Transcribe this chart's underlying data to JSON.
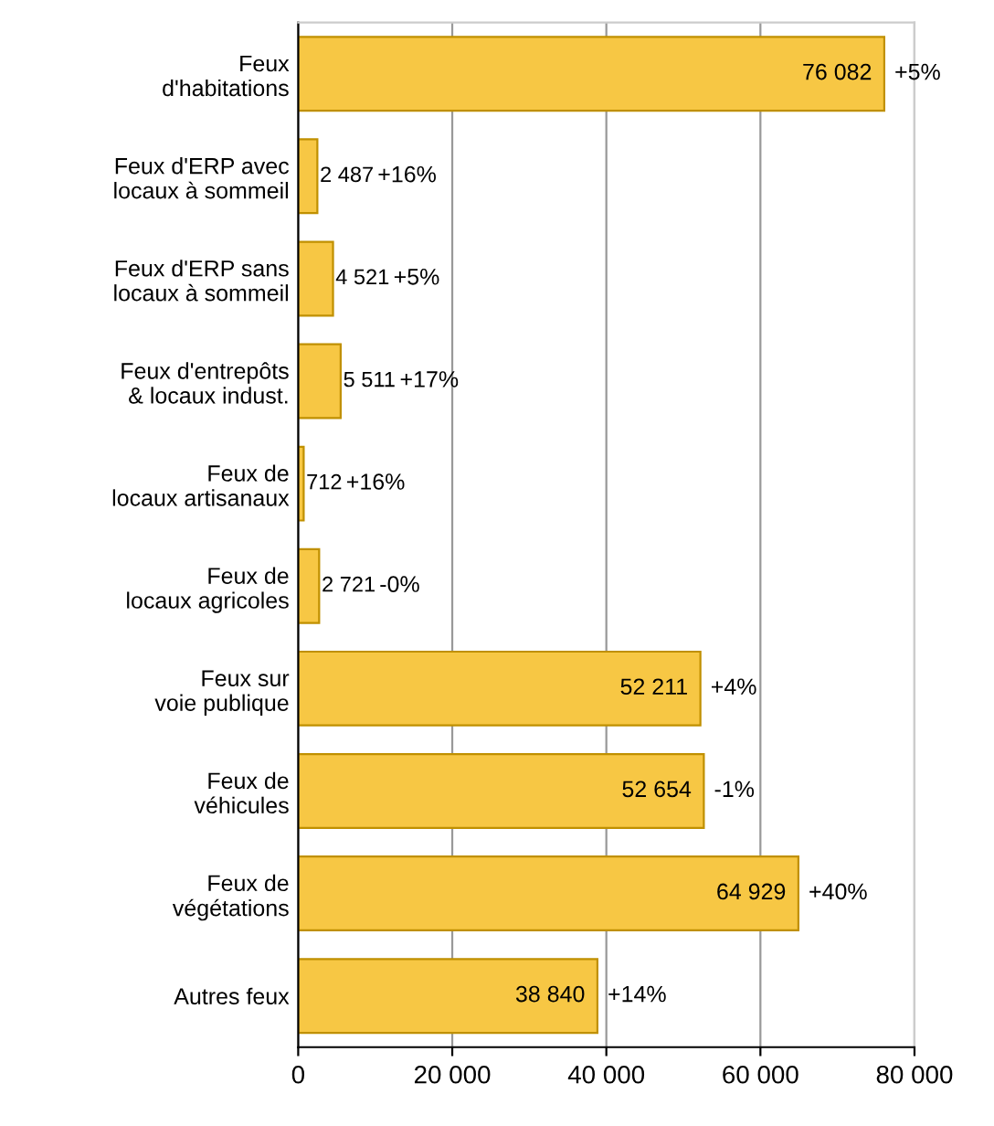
{
  "chart_data": {
    "type": "bar",
    "orientation": "horizontal",
    "categories": [
      "Feux\nd'habitations",
      "Feux d'ERP avec\nlocaux à sommeil",
      "Feux d'ERP sans\nlocaux à sommeil",
      "Feux d'entrepôts\n& locaux indust.",
      "Feux de\nlocaux artisanaux",
      "Feux de\nlocaux agricoles",
      "Feux sur\nvoie publique",
      "Feux de\nvéhicules",
      "Feux de\nvégétations",
      "Autres feux"
    ],
    "values": [
      76082,
      2487,
      4521,
      5511,
      712,
      2721,
      52211,
      52654,
      64929,
      38840
    ],
    "value_labels": [
      "76 082",
      "2 487",
      "4 521",
      "5 511",
      "712",
      "2 721",
      "52 211",
      "52 654",
      "64 929",
      "38 840"
    ],
    "color": "#f7c744",
    "xlim": [
      0,
      80000
    ],
    "xticks": [
      0,
      {
        "value": 20000,
        "label": "20 000"
      },
      {
        "value": 40000,
        "label": "40 000"
      },
      {
        "value": 60000,
        "label": "60 000"
      },
      {
        "value": 80000,
        "label": "80 000"
      }
    ],
    "grid": "x",
    "annotations": [
      {
        "text": "+5%",
        "x": 76082,
        "y": "Feux\nd'habitations"
      },
      {
        "text": "+16%",
        "x": 2487,
        "y": "Feux d'ERP avec\nlocaux à sommeil"
      },
      {
        "text": "+5%",
        "x": 4521,
        "y": "Feux d'ERP sans\nlocaux à sommeil"
      },
      {
        "text": "+17%",
        "x": 5511,
        "y": "Feux d'entrepôts\n& locaux indust."
      },
      {
        "text": "+16%",
        "x": 712,
        "y": "Feux de\nlocaux artisanaux"
      },
      {
        "text": "-0%",
        "x": 2721,
        "y": "Feux de\nlocaux agricoles"
      },
      {
        "text": "+4%",
        "x": 52211,
        "y": "Feux sur\nvoie publique"
      },
      {
        "text": "-1%",
        "x": 52654,
        "y": "Feux de\nvéhicules"
      },
      {
        "text": "+40%",
        "x": 64929,
        "y": "Feux de\nvégétations"
      },
      {
        "text": "+14%",
        "x": 38840,
        "y": "Autres feux"
      }
    ]
  }
}
